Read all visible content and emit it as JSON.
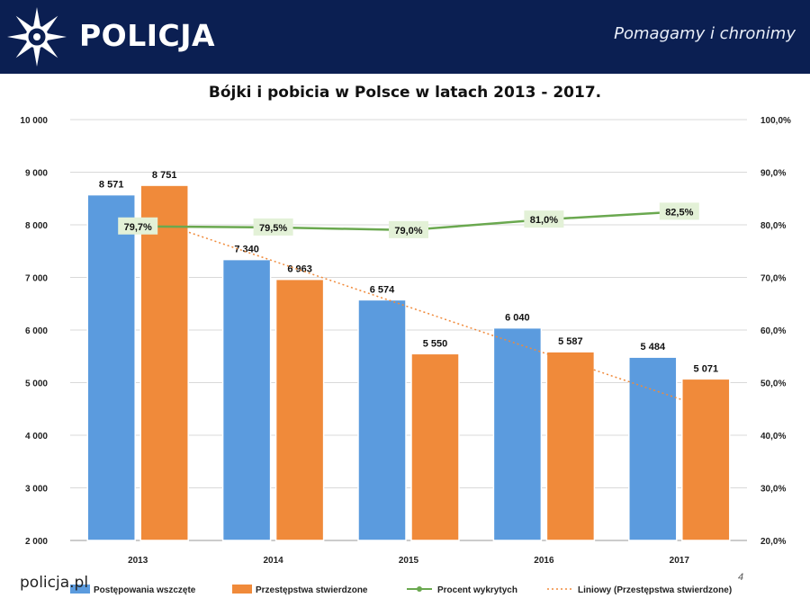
{
  "header": {
    "brand": "POLICJA",
    "slogan": "Pomagamy i chronimy"
  },
  "footer": {
    "site": "policja.pl",
    "page_number": "4"
  },
  "colors": {
    "header_bg": "#0b1f52",
    "bar_blue": "#5b9bde",
    "bar_orange": "#f08a3a",
    "line_green": "#6aa84f",
    "trend_orange": "#f08a3a"
  },
  "chart_data": {
    "type": "bar",
    "title": "Bójki i pobicia w Polsce w latach 2013 - 2017.",
    "categories": [
      "2013",
      "2014",
      "2015",
      "2016",
      "2017"
    ],
    "series": [
      {
        "name": "Postępowania wszczęte",
        "kind": "bar",
        "axis": "left",
        "values": [
          8571,
          7340,
          6574,
          6040,
          5484
        ],
        "labels": [
          "8 571",
          "7 340",
          "6 574",
          "6 040",
          "5 484"
        ]
      },
      {
        "name": "Przestępstwa stwierdzone",
        "kind": "bar",
        "axis": "left",
        "values": [
          8751,
          6963,
          5550,
          5587,
          5071
        ],
        "labels": [
          "8 751",
          "6 963",
          "5 550",
          "5 587",
          "5 071"
        ]
      },
      {
        "name": "Procent wykrytych",
        "kind": "line",
        "axis": "right",
        "values": [
          79.7,
          79.5,
          79.0,
          81.0,
          82.5
        ],
        "labels": [
          "79,7%",
          "79,5%",
          "79,0%",
          "81,0%",
          "82,5%"
        ]
      },
      {
        "name": "Liniowy (Przestępstwa stwierdzone)",
        "kind": "trendline",
        "axis": "left",
        "of_series": "Przestępstwa stwierdzone"
      }
    ],
    "y_left": {
      "min": 2000,
      "max": 10000,
      "ticks": [
        "2 000",
        "3 000",
        "4 000",
        "5 000",
        "6 000",
        "7 000",
        "8 000",
        "9 000",
        "10 000"
      ]
    },
    "y_right": {
      "min": 20,
      "max": 100,
      "ticks": [
        "20,0%",
        "30,0%",
        "40,0%",
        "50,0%",
        "60,0%",
        "70,0%",
        "80,0%",
        "90,0%",
        "100,0%"
      ]
    },
    "grid": true,
    "legend_position": "bottom"
  }
}
